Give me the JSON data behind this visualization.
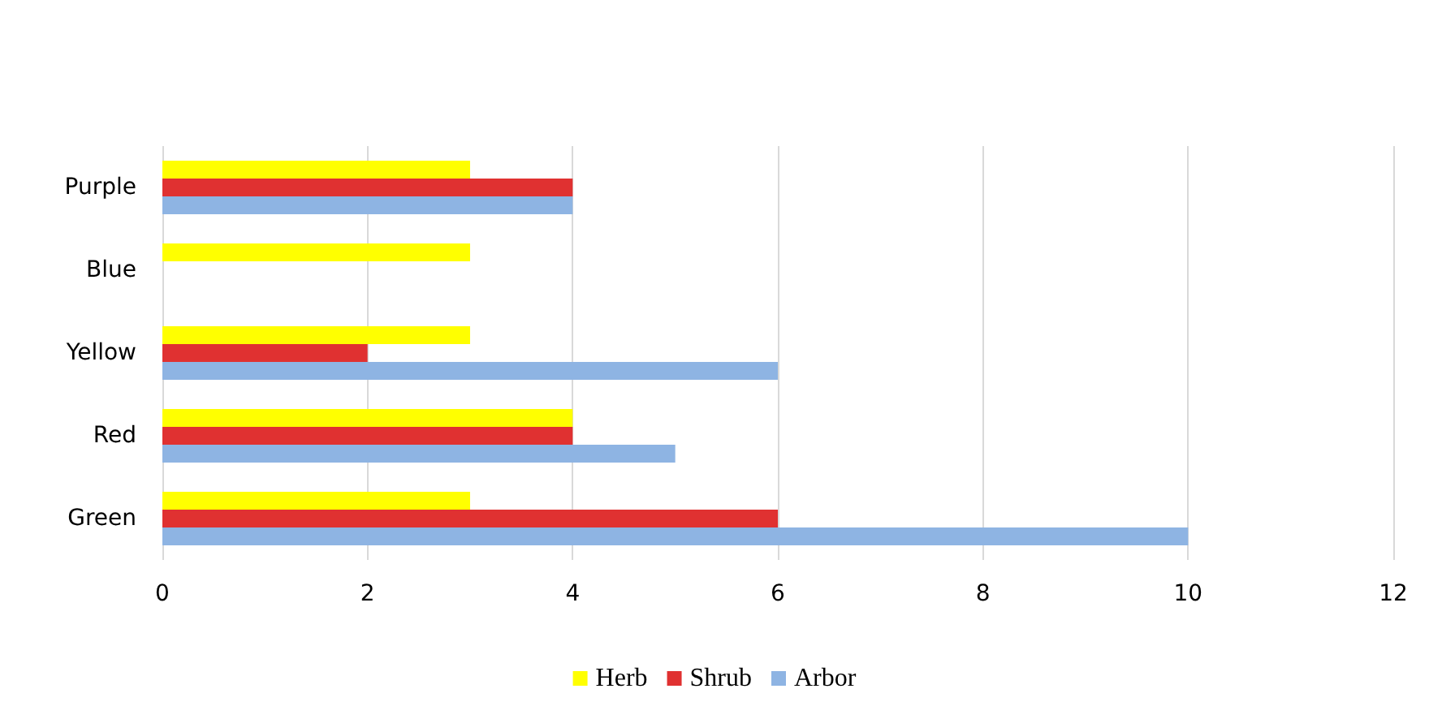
{
  "chart_data": {
    "type": "bar",
    "orientation": "horizontal",
    "categories": [
      "Purple",
      "Blue",
      "Yellow",
      "Red",
      "Green"
    ],
    "series": [
      {
        "name": "Herb",
        "color": "#ffff00",
        "values": [
          3,
          3,
          3,
          4,
          3
        ]
      },
      {
        "name": "Shrub",
        "color": "#e03131",
        "values": [
          4,
          null,
          2,
          4,
          6
        ]
      },
      {
        "name": "Arbor",
        "color": "#8eb4e3",
        "values": [
          4,
          null,
          6,
          5,
          10
        ]
      }
    ],
    "xlim": [
      0,
      12
    ],
    "xticks": [
      0,
      2,
      4,
      6,
      8,
      10,
      12
    ],
    "grid": "x",
    "legend": "bottom"
  }
}
